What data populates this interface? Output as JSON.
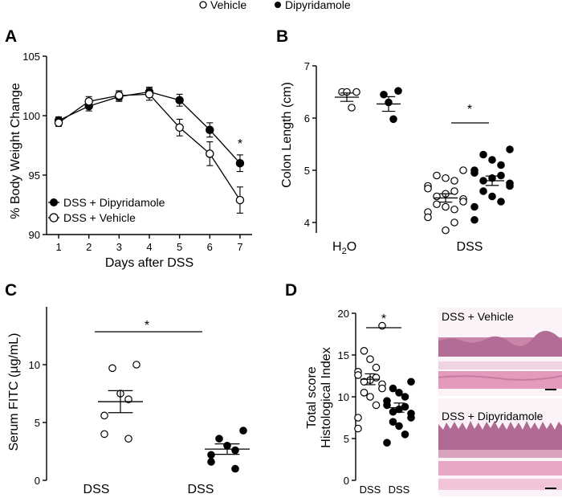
{
  "legend_top": {
    "items": [
      {
        "label": "Vehicle",
        "marker": "open"
      },
      {
        "label": "Dipyridamole",
        "marker": "filled"
      }
    ]
  },
  "colors": {
    "ink": "#000000",
    "open_fill": "#ffffff",
    "tissue_pink": "#e6a3c4",
    "tissue_purple": "#8f4d93",
    "tissue_bg": "#f7eaf1"
  },
  "chart_data": [
    {
      "id": "A",
      "type": "line",
      "panel_label": "A",
      "xlabel": "Days after DSS",
      "ylabel": "% Body Weight Change",
      "xlim": [
        0.6,
        7.4
      ],
      "ylim": [
        90,
        105
      ],
      "xticks": [
        1,
        2,
        3,
        4,
        5,
        6,
        7
      ],
      "yticks": [
        90,
        95,
        100,
        105
      ],
      "legend_position": "bottom-left",
      "series": [
        {
          "name": "DSS + Dipyridamole",
          "marker": "filled",
          "x": [
            1,
            2,
            3,
            4,
            5,
            6,
            7
          ],
          "y": [
            99.6,
            100.8,
            101.6,
            102.0,
            101.3,
            98.8,
            96.0
          ],
          "err": [
            0.3,
            0.4,
            0.4,
            0.4,
            0.5,
            0.6,
            0.7
          ]
        },
        {
          "name": "DSS + Vehicle",
          "marker": "open",
          "x": [
            1,
            2,
            3,
            4,
            5,
            6,
            7
          ],
          "y": [
            99.4,
            101.2,
            101.7,
            101.8,
            99.0,
            96.8,
            92.9
          ],
          "err": [
            0.3,
            0.4,
            0.4,
            0.5,
            0.7,
            1.0,
            1.1
          ]
        }
      ],
      "annotations": [
        {
          "text": "*",
          "x": 7,
          "y": 97.3
        }
      ]
    },
    {
      "id": "B",
      "type": "scatter",
      "panel_label": "B",
      "ylabel": "Colon Length (cm)",
      "categories": [
        "H2O",
        "DSS"
      ],
      "ylim": [
        3.8,
        7
      ],
      "yticks": [
        4,
        5,
        6,
        7
      ],
      "groups": [
        {
          "category": "H2O",
          "name": "Vehicle",
          "marker": "open",
          "values": [
            6.5,
            6.5,
            6.5,
            6.2
          ],
          "mean": 6.4,
          "sem": 0.08
        },
        {
          "category": "H2O",
          "name": "Dipyridamole",
          "marker": "filled",
          "values": [
            6.52,
            6.45,
            6.3,
            5.98
          ],
          "mean": 6.27,
          "sem": 0.14
        },
        {
          "category": "DSS",
          "name": "Vehicle",
          "marker": "open",
          "values": [
            5.0,
            4.9,
            4.85,
            4.8,
            4.7,
            4.65,
            4.6,
            4.55,
            4.5,
            4.45,
            4.4,
            4.35,
            4.3,
            4.25,
            4.2,
            4.1,
            4.0,
            3.85
          ],
          "mean": 4.47,
          "sem": 0.08
        },
        {
          "category": "DSS",
          "name": "Dipyridamole",
          "marker": "filled",
          "values": [
            5.4,
            5.3,
            5.2,
            5.1,
            5.0,
            4.95,
            4.9,
            4.85,
            4.8,
            4.75,
            4.7,
            4.6,
            4.5,
            4.4,
            4.3,
            4.05
          ],
          "mean": 4.8,
          "sem": 0.09
        }
      ],
      "annotations": [
        {
          "text": "*"
        }
      ]
    },
    {
      "id": "C",
      "type": "scatter",
      "panel_label": "C",
      "ylabel": "Serum FITC (µg/mL)",
      "categories": [
        "DSS",
        "DSS"
      ],
      "ylim": [
        0,
        15
      ],
      "yticks": [
        0,
        5,
        10
      ],
      "groups": [
        {
          "category": "DSS",
          "name": "Vehicle",
          "marker": "open",
          "values": [
            10.0,
            9.7,
            7.5,
            7.0,
            5.6,
            4.0,
            3.6
          ],
          "mean": 6.8,
          "sem": 0.95
        },
        {
          "category": "DSS",
          "name": "Dipyridamole",
          "marker": "filled",
          "values": [
            4.3,
            3.6,
            3.0,
            2.6,
            2.2,
            1.6,
            1.0
          ],
          "mean": 2.7,
          "sem": 0.45
        }
      ],
      "annotations": [
        {
          "text": "*"
        }
      ]
    },
    {
      "id": "D",
      "type": "scatter",
      "panel_label": "D",
      "ylabel_lines": [
        "Total score",
        "Histological Index"
      ],
      "categories": [
        "DSS",
        "DSS"
      ],
      "ylim": [
        0,
        20
      ],
      "yticks": [
        0,
        5,
        10,
        15,
        20
      ],
      "groups": [
        {
          "category": "DSS",
          "name": "Vehicle",
          "marker": "open",
          "values": [
            18.5,
            15.5,
            14.5,
            13.5,
            13.0,
            12.6,
            12.3,
            12.0,
            11.8,
            11.5,
            11.0,
            10.5,
            10.0,
            9.0,
            7.5,
            6.2
          ],
          "mean": 12.1,
          "sem": 0.65
        },
        {
          "category": "DSS",
          "name": "Dipyridamole",
          "marker": "filled",
          "values": [
            11.8,
            11.0,
            10.5,
            10.0,
            9.5,
            9.0,
            8.8,
            8.5,
            8.2,
            8.0,
            7.5,
            7.0,
            6.5,
            5.5,
            4.5
          ],
          "mean": 8.7,
          "sem": 0.55
        },
        {
          "category": "DSS",
          "name": "",
          "marker": "none",
          "values": []
        }
      ],
      "annotations": [
        {
          "text": "*"
        }
      ]
    }
  ],
  "micrographs": [
    {
      "label": "DSS + Vehicle"
    },
    {
      "label": "DSS + Dipyridamole"
    }
  ]
}
